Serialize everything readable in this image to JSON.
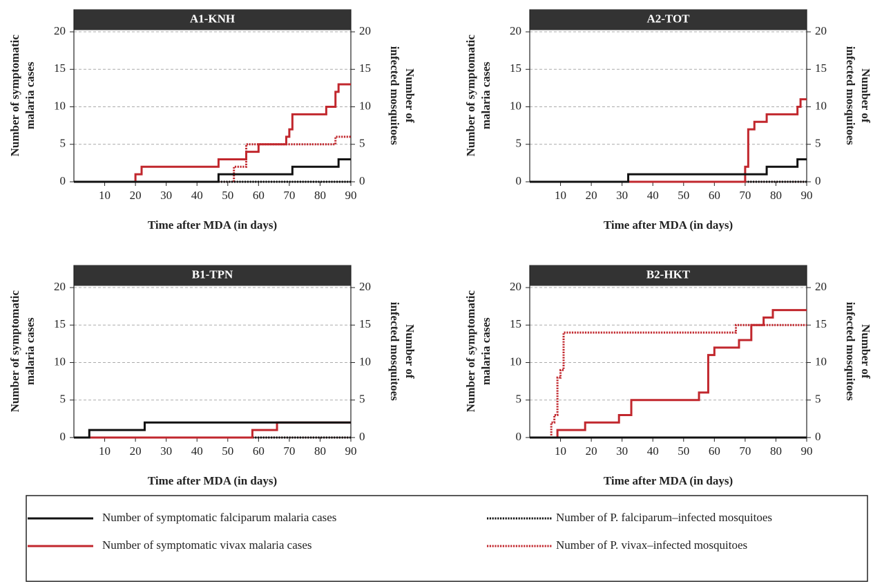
{
  "chart_data": [
    {
      "type": "step",
      "title": "A1-KNH",
      "ylabel": [
        "Number of symptomatic",
        "malaria cases"
      ],
      "y2label": [
        "Number of",
        "infected mosquitoes"
      ],
      "xlabel": "Time after MDA (in days)",
      "xlim": [
        0,
        90
      ],
      "xticks": [
        10,
        20,
        30,
        40,
        50,
        60,
        70,
        80,
        90
      ],
      "ylim": [
        0,
        23
      ],
      "yticks": [
        0,
        5,
        10,
        15,
        20
      ],
      "y2lim": [
        0,
        23
      ],
      "y2ticks": [
        0,
        5,
        10,
        15,
        20
      ],
      "grid": true,
      "series": [
        {
          "color": "#c1272d",
          "style": "dotted",
          "axis": "y2",
          "x": [
            0,
            52,
            56,
            85,
            90
          ],
          "values": [
            0,
            2,
            5,
            6,
            6
          ]
        },
        {
          "color": "#111111",
          "style": "dotted",
          "axis": "y2",
          "x": [
            0,
            90
          ],
          "values": [
            0,
            0
          ]
        },
        {
          "color": "#c1272d",
          "style": "solid",
          "x": [
            0,
            20,
            22,
            47,
            56,
            60,
            69,
            70,
            71,
            82,
            85,
            86,
            90
          ],
          "values": [
            0,
            1,
            2,
            3,
            4,
            5,
            6,
            7,
            9,
            10,
            12,
            13,
            13
          ]
        },
        {
          "color": "#111111",
          "style": "solid",
          "x": [
            0,
            47,
            71,
            86,
            90
          ],
          "values": [
            0,
            1,
            2,
            3,
            3
          ]
        }
      ]
    },
    {
      "type": "step",
      "title": "A2-TOT",
      "ylabel": [
        "Number of symptomatic",
        "malaria cases"
      ],
      "y2label": [
        "Number of",
        "infected mosquitoes"
      ],
      "xlabel": "Time after MDA (in days)",
      "xlim": [
        0,
        90
      ],
      "xticks": [
        10,
        20,
        30,
        40,
        50,
        60,
        70,
        80,
        90
      ],
      "ylim": [
        0,
        23
      ],
      "yticks": [
        0,
        5,
        10,
        15,
        20
      ],
      "y2lim": [
        0,
        23
      ],
      "y2ticks": [
        0,
        5,
        10,
        15,
        20
      ],
      "grid": true,
      "series": [
        {
          "color": "#c1272d",
          "style": "dotted",
          "axis": "y2",
          "x": [
            0,
            90
          ],
          "values": [
            0,
            0
          ]
        },
        {
          "color": "#111111",
          "style": "dotted",
          "axis": "y2",
          "x": [
            0,
            90
          ],
          "values": [
            0,
            0
          ]
        },
        {
          "color": "#c1272d",
          "style": "solid",
          "x": [
            0,
            70,
            71,
            73,
            77,
            87,
            88,
            90
          ],
          "values": [
            0,
            2,
            7,
            8,
            9,
            10,
            11,
            11
          ]
        },
        {
          "color": "#111111",
          "style": "solid",
          "x": [
            0,
            32,
            77,
            87,
            90
          ],
          "values": [
            0,
            1,
            2,
            3,
            3
          ]
        }
      ]
    },
    {
      "type": "step",
      "title": "B1-TPN",
      "ylabel": [
        "Number of symptomatic",
        "malaria cases"
      ],
      "y2label": [
        "Number of",
        "infected mosquitoes"
      ],
      "xlabel": "Time after MDA (in days)",
      "xlim": [
        0,
        90
      ],
      "xticks": [
        10,
        20,
        30,
        40,
        50,
        60,
        70,
        80,
        90
      ],
      "ylim": [
        0,
        23
      ],
      "yticks": [
        0,
        5,
        10,
        15,
        20
      ],
      "y2lim": [
        0,
        23
      ],
      "y2ticks": [
        0,
        5,
        10,
        15,
        20
      ],
      "grid": true,
      "series": [
        {
          "color": "#c1272d",
          "style": "dotted",
          "axis": "y2",
          "x": [
            0,
            90
          ],
          "values": [
            0,
            0
          ]
        },
        {
          "color": "#111111",
          "style": "dotted",
          "axis": "y2",
          "x": [
            0,
            90
          ],
          "values": [
            0,
            0
          ]
        },
        {
          "color": "#c1272d",
          "style": "solid",
          "x": [
            0,
            58,
            66,
            90
          ],
          "values": [
            0,
            1,
            2,
            2
          ]
        },
        {
          "color": "#111111",
          "style": "solid",
          "x": [
            0,
            5,
            23,
            90
          ],
          "values": [
            0,
            1,
            2,
            2
          ]
        }
      ]
    },
    {
      "type": "step",
      "title": "B2-HKT",
      "ylabel": [
        "Number of symptomatic",
        "malaria cases"
      ],
      "y2label": [
        "Number of",
        "infected mosquitoes"
      ],
      "xlabel": "Time after MDA (in days)",
      "xlim": [
        0,
        90
      ],
      "xticks": [
        10,
        20,
        30,
        40,
        50,
        60,
        70,
        80,
        90
      ],
      "ylim": [
        0,
        23
      ],
      "yticks": [
        0,
        5,
        10,
        15,
        20
      ],
      "y2lim": [
        0,
        23
      ],
      "y2ticks": [
        0,
        5,
        10,
        15,
        20
      ],
      "grid": true,
      "series": [
        {
          "color": "#c1272d",
          "style": "dotted",
          "axis": "y2",
          "x": [
            0,
            7,
            8,
            9,
            10,
            11,
            67,
            90
          ],
          "values": [
            0,
            2,
            3,
            8,
            9,
            14,
            15,
            15
          ]
        },
        {
          "color": "#111111",
          "style": "dotted",
          "axis": "y2",
          "x": [
            0,
            90
          ],
          "values": [
            0,
            0
          ]
        },
        {
          "color": "#c1272d",
          "style": "solid",
          "x": [
            0,
            9,
            18,
            29,
            33,
            55,
            58,
            60,
            68,
            72,
            76,
            79,
            90
          ],
          "values": [
            0,
            1,
            2,
            3,
            5,
            6,
            11,
            12,
            13,
            15,
            16,
            17,
            17
          ]
        },
        {
          "color": "#111111",
          "style": "solid",
          "x": [
            0,
            90
          ],
          "values": [
            0,
            0
          ]
        }
      ]
    }
  ],
  "legend": [
    {
      "name": "Number of symptomatic falciparum malaria cases",
      "color": "#111111",
      "style": "solid"
    },
    {
      "name": "Number of symptomatic vivax malaria cases",
      "color": "#c1272d",
      "style": "solid"
    },
    {
      "name": "Number of P. falciparum–infected mosquitoes",
      "color": "#111111",
      "style": "dotted"
    },
    {
      "name": "Number of P. vivax–infected mosquitoes",
      "color": "#c1272d",
      "style": "dotted"
    }
  ]
}
